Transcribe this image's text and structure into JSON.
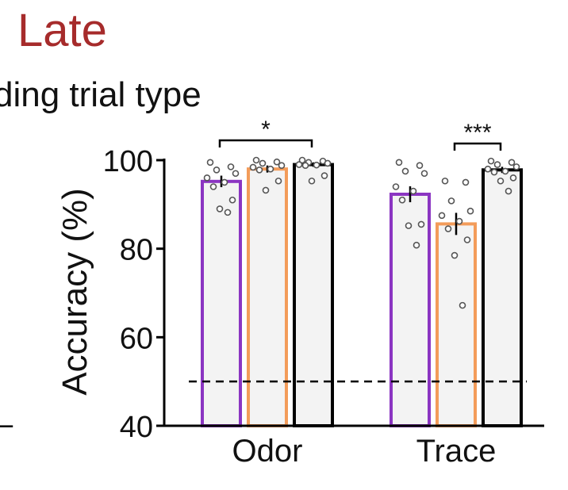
{
  "colors": {
    "title": "#a62b2b",
    "text": "#111111",
    "bar_fill": "#f3f3f3",
    "points": "#555555"
  },
  "chart_data": {
    "type": "bar",
    "title": "Late",
    "subtitle": "ding trial type",
    "ylabel": "Accuracy (%)",
    "ylim": [
      40,
      100
    ],
    "yticks": [
      40,
      60,
      80,
      100
    ],
    "chance_level": 50,
    "categories": [
      "Odor",
      "Trace"
    ],
    "series": [
      {
        "edge_color": "#8b35c2",
        "values": [
          95.2,
          92.3
        ],
        "sem": [
          1.3,
          1.8
        ]
      },
      {
        "edge_color": "#f39c5a",
        "values": [
          98.0,
          85.6
        ],
        "sem": [
          0.8,
          2.5
        ]
      },
      {
        "edge_color": "#000000",
        "values": [
          99.0,
          97.8
        ],
        "sem": [
          0.5,
          0.7
        ]
      }
    ],
    "points": [
      [
        [
          99.5,
          98.5,
          97.8,
          97,
          96,
          95,
          94,
          91,
          89,
          88.2
        ],
        [
          99.5,
          98.8,
          97.5,
          97,
          94,
          93,
          91,
          85.5,
          85.2,
          80.8
        ]
      ],
      [
        [
          100,
          99.6,
          99.3,
          98.8,
          98.4,
          98,
          97.8,
          95.3,
          93.2
        ],
        [
          95.3,
          95,
          90.8,
          88.5,
          87.5,
          86.2,
          84.5,
          82,
          78.5,
          67.2
        ]
      ],
      [
        [
          100,
          99.8,
          99.5,
          99.3,
          99,
          98.9,
          98.8,
          96.5,
          95.3
        ],
        [
          99.8,
          99.5,
          99,
          98.5,
          98,
          97.5,
          97.3,
          96,
          95.3,
          93
        ]
      ]
    ],
    "significance": [
      {
        "category": 0,
        "from_series": 0,
        "to_series": 2,
        "label": "*"
      },
      {
        "category": 1,
        "from_series": 1,
        "to_series": 2,
        "label": "***"
      }
    ],
    "left_edge_dash": "–"
  }
}
